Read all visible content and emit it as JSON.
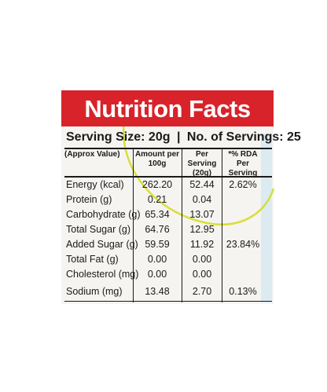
{
  "header": {
    "title": "Nutrition Facts"
  },
  "serving": {
    "size": "Serving Size: 20g",
    "separator": "|",
    "count": "No. of Servings: 25"
  },
  "columns": {
    "approx": "(Approx Value)",
    "per100": "Amount per 100g",
    "perServing": "Per Serving (20g)",
    "rda": "*% RDA Per Serving"
  },
  "rows": [
    {
      "name": "Energy (kcal)",
      "per100": "262.20",
      "serving": "52.44",
      "rda": "2.62%"
    },
    {
      "name": "Protein (g)",
      "per100": "0.21",
      "serving": "0.04",
      "rda": ""
    },
    {
      "name": "Carbohydrate (g)",
      "per100": "65.34",
      "serving": "13.07",
      "rda": ""
    },
    {
      "name": "Total Sugar (g)",
      "per100": "64.76",
      "serving": "12.95",
      "rda": ""
    },
    {
      "name": "Added Sugar (g)",
      "per100": "59.59",
      "serving": "11.92",
      "rda": "23.84%"
    },
    {
      "name": "Total Fat (g)",
      "per100": "0.00",
      "serving": "0.00",
      "rda": ""
    },
    {
      "name": "Cholesterol (mg)",
      "per100": "0.00",
      "serving": "0.00",
      "rda": ""
    },
    {
      "name": "Sodium (mg)",
      "per100": "13.48",
      "serving": "2.70",
      "rda": "0.13%"
    }
  ],
  "colors": {
    "header_red": "#d8232a",
    "panel": "#f6f4f1",
    "accent_blue": "#dcebf2",
    "arc_yellow": "#d6df3a"
  }
}
